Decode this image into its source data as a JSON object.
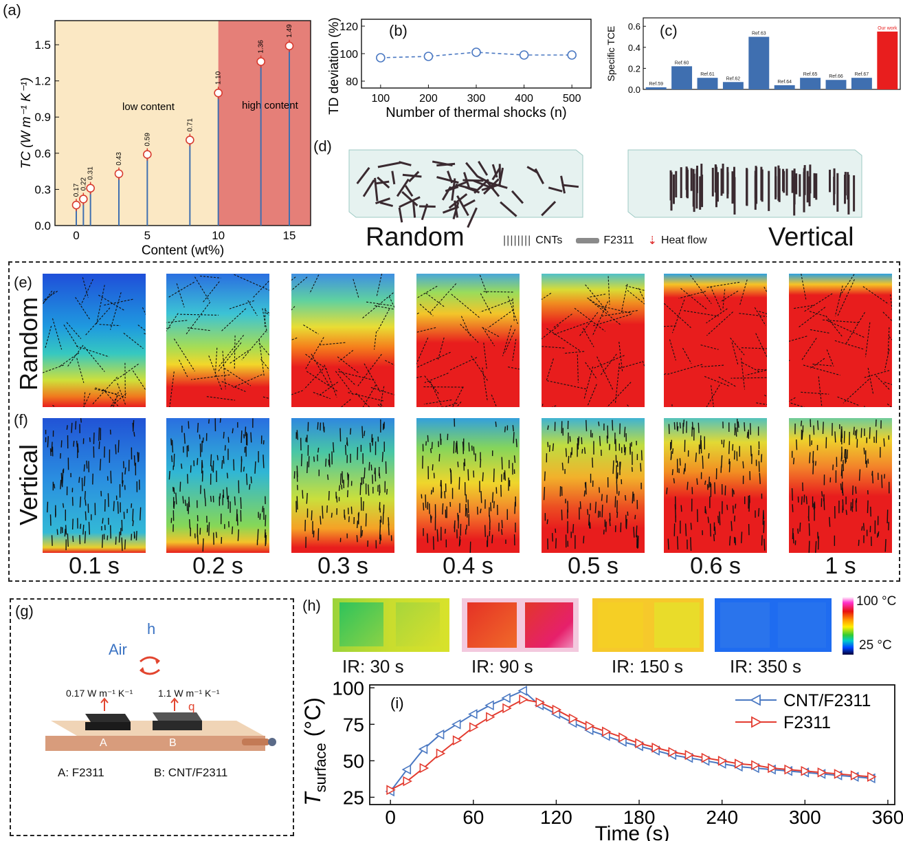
{
  "panel_labels": {
    "a": "(a)",
    "b": "(b)",
    "c": "(c)",
    "d": "(d)",
    "e": "(e)",
    "f": "(f)",
    "g": "(g)",
    "h": "(h)",
    "i": "(i)"
  },
  "chart_data": [
    {
      "id": "a",
      "type": "scatter",
      "xlabel": "Content (wt%)",
      "ylabel": "TC (W m⁻¹ K⁻¹)",
      "xlim": [
        -1.5,
        16.5
      ],
      "ylim": [
        0,
        1.7
      ],
      "xticks": [
        "0",
        "5",
        "10",
        "15"
      ],
      "yticks": [
        "0.0",
        "0.3",
        "0.6",
        "0.9",
        "1.2",
        "1.5"
      ],
      "x": [
        0,
        0.5,
        1,
        3,
        5,
        8,
        10,
        13,
        15
      ],
      "y": [
        0.17,
        0.22,
        0.31,
        0.43,
        0.59,
        0.71,
        1.1,
        1.36,
        1.49
      ],
      "point_labels": [
        "0.17",
        "0.22",
        "0.31",
        "0.43",
        "0.59",
        "0.71",
        "1.10",
        "1.36",
        "1.49"
      ],
      "region_low": "low content",
      "region_high": "high content",
      "low_color": "#fbe8c4",
      "high_color": "#e57f78"
    },
    {
      "id": "b",
      "type": "line",
      "xlabel": "Number of thermal shocks (n)",
      "ylabel": "TD deviation (%)",
      "xlim": [
        60,
        540
      ],
      "ylim": [
        75,
        125
      ],
      "xticks": [
        "100",
        "200",
        "300",
        "400",
        "500"
      ],
      "yticks": [
        "80",
        "100",
        "120"
      ],
      "x": [
        100,
        200,
        300,
        400,
        500
      ],
      "y": [
        97,
        98,
        101,
        99,
        99
      ],
      "color": "#4a78c2"
    },
    {
      "id": "c",
      "type": "bar",
      "ylabel": "Specific TCE",
      "ylim": [
        0,
        0.68
      ],
      "yticks": [
        "0.0",
        "0.2",
        "0.4",
        "0.6"
      ],
      "categories": [
        "Ref.59",
        "Ref.60",
        "Ref.61",
        "Ref.62",
        "Ref.63",
        "Ref.64",
        "Ref.65",
        "Ref.66",
        "Ref.67",
        "Our work"
      ],
      "values": [
        0.02,
        0.22,
        0.11,
        0.07,
        0.5,
        0.04,
        0.11,
        0.09,
        0.11,
        0.55
      ],
      "bar_color": "#3f6fb0",
      "highlight_color": "#e81e1e"
    },
    {
      "id": "i",
      "type": "line",
      "xlabel": "Time (s)",
      "ylabel_main": "T",
      "ylabel_sub": "surface",
      "ylabel_unit": "(°C)",
      "xlim": [
        -15,
        365
      ],
      "ylim": [
        20,
        102
      ],
      "xticks": [
        "0",
        "60",
        "120",
        "180",
        "240",
        "300",
        "360"
      ],
      "yticks": [
        "25",
        "50",
        "75",
        "100"
      ],
      "series": [
        {
          "name": "CNT/F2311",
          "color": "#4a78c2",
          "marker": "left",
          "x": [
            0,
            12,
            24,
            36,
            48,
            60,
            72,
            84,
            96,
            108,
            120,
            132,
            144,
            156,
            168,
            180,
            192,
            204,
            216,
            228,
            240,
            252,
            264,
            276,
            288,
            300,
            312,
            324,
            336,
            348
          ],
          "y": [
            29,
            44,
            58,
            68,
            75,
            82,
            88,
            93,
            98,
            88,
            82,
            76,
            71,
            67,
            63,
            60,
            57,
            54,
            52,
            50,
            48,
            46,
            45,
            44,
            43,
            42,
            41,
            40,
            39,
            38
          ]
        },
        {
          "name": "F2311",
          "color": "#e33b2f",
          "marker": "right",
          "x": [
            0,
            12,
            24,
            36,
            48,
            60,
            72,
            84,
            96,
            108,
            120,
            132,
            144,
            156,
            168,
            180,
            192,
            204,
            216,
            228,
            240,
            252,
            264,
            276,
            288,
            300,
            312,
            324,
            336,
            348
          ],
          "y": [
            30,
            36,
            45,
            55,
            64,
            73,
            80,
            86,
            92,
            90,
            85,
            79,
            74,
            70,
            66,
            62,
            59,
            56,
            54,
            52,
            50,
            48,
            47,
            45,
            44,
            43,
            42,
            41,
            40,
            39
          ]
        }
      ]
    }
  ],
  "panel_d": {
    "left_title": "Random",
    "right_title": "Vertical",
    "legend_cnts": "CNTs",
    "legend_f2311": "F2311",
    "legend_heat": "Heat flow"
  },
  "panel_e": {
    "row_label": "Random"
  },
  "panel_f": {
    "row_label": "Vertical"
  },
  "time_labels": [
    "0.1 s",
    "0.2 s",
    "0.3 s",
    "0.4 s",
    "0.5 s",
    "0.6 s",
    "1 s"
  ],
  "panel_g": {
    "h_label": "h",
    "air_label": "Air",
    "k_a": "0.17 W m⁻¹ K⁻¹",
    "k_b": "1.1 W m⁻¹ K⁻¹",
    "q_label": "q",
    "sample_a": "A",
    "sample_b": "B",
    "caption_a": "A: F2311",
    "caption_b": "B: CNT/F2311"
  },
  "panel_h": {
    "ir_labels": [
      "IR: 30 s",
      "IR: 90 s",
      "IR: 150 s",
      "IR: 350 s"
    ],
    "scale_max": "100 °C",
    "scale_min": "25 °C"
  }
}
